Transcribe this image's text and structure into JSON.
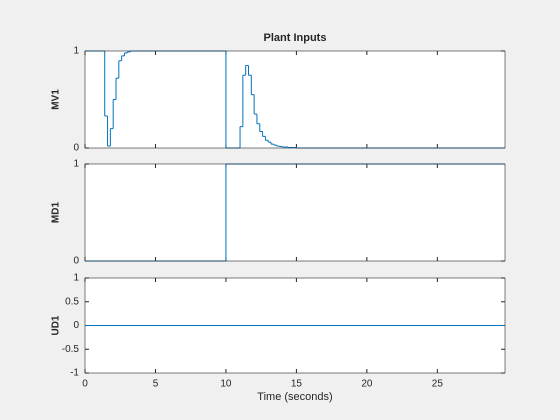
{
  "chart_data": [
    {
      "type": "stairs",
      "title": "Plant Inputs",
      "ylabel": "MV1",
      "xlim": [
        0,
        29.8
      ],
      "xticks": [
        0,
        5,
        10,
        15,
        20,
        25
      ],
      "ylim": [
        0,
        1
      ],
      "yticks": [
        0,
        1
      ],
      "series": [
        {
          "color": "#0072bd",
          "x": [
            0,
            1.4,
            1.6,
            1.8,
            2.0,
            2.2,
            2.4,
            2.6,
            2.8,
            3.0,
            3.2,
            10.0,
            11.0,
            11.2,
            11.4,
            11.6,
            11.8,
            12.0,
            12.2,
            12.4,
            12.6,
            12.8,
            13.0,
            13.2,
            13.4,
            13.6,
            13.8,
            14.0,
            14.4,
            15.0,
            29.8
          ],
          "values": [
            1,
            0.33,
            0.02,
            0.2,
            0.5,
            0.72,
            0.9,
            0.95,
            0.98,
            0.99,
            1,
            0,
            0.22,
            0.75,
            0.85,
            0.75,
            0.55,
            0.35,
            0.25,
            0.17,
            0.12,
            0.08,
            0.06,
            0.04,
            0.03,
            0.02,
            0.015,
            0.01,
            0.005,
            0,
            0
          ]
        }
      ]
    },
    {
      "type": "stairs",
      "ylabel": "MD1",
      "xlim": [
        0,
        29.8
      ],
      "xticks": [
        0,
        5,
        10,
        15,
        20,
        25
      ],
      "ylim": [
        0,
        1
      ],
      "yticks": [
        0,
        1
      ],
      "series": [
        {
          "color": "#0072bd",
          "x": [
            0,
            10,
            29.8
          ],
          "values": [
            0,
            1,
            1
          ]
        }
      ]
    },
    {
      "type": "stairs",
      "ylabel": "UD1",
      "xlabel": "Time (seconds)",
      "xlim": [
        0,
        29.8
      ],
      "xticks": [
        0,
        5,
        10,
        15,
        20,
        25
      ],
      "ylim": [
        -1,
        1
      ],
      "yticks": [
        -1,
        -0.5,
        0,
        0.5,
        1
      ],
      "series": [
        {
          "color": "#0072bd",
          "x": [
            0,
            29.8
          ],
          "values": [
            0,
            0
          ]
        }
      ]
    }
  ]
}
